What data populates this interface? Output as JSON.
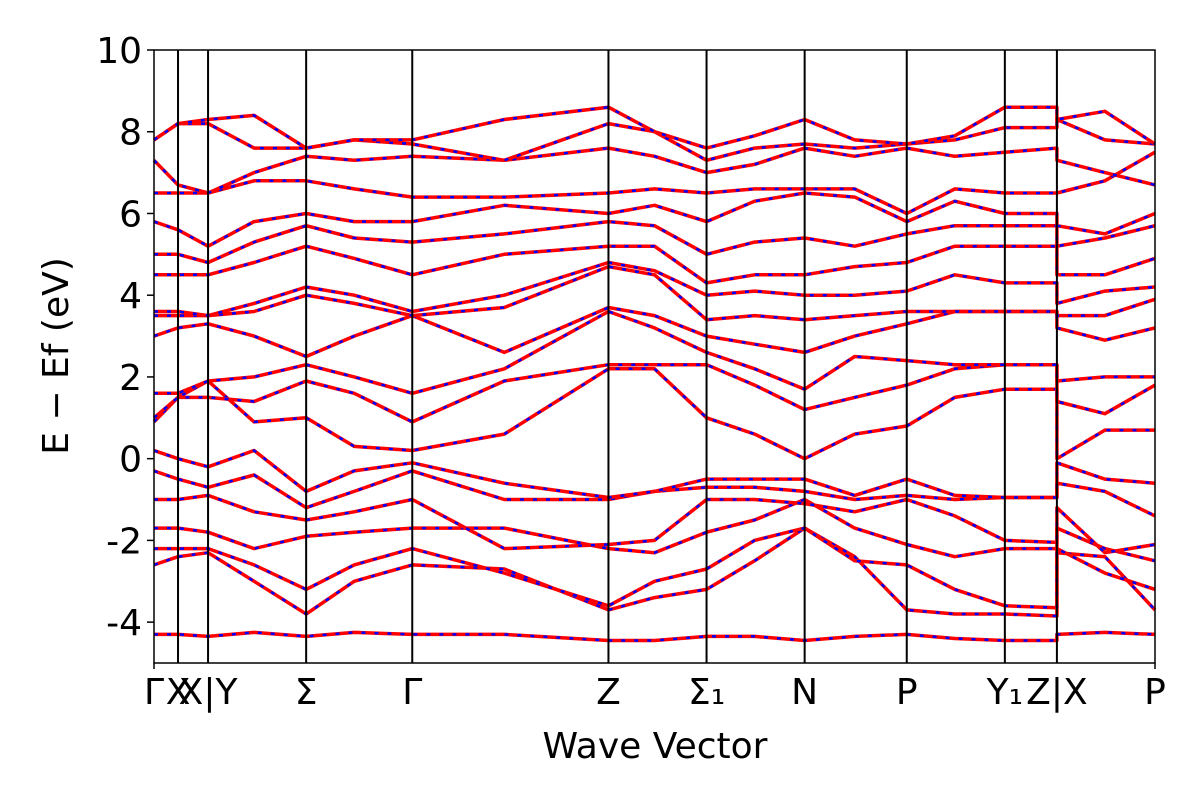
{
  "chart_data": {
    "type": "line",
    "xlabel": "Wave Vector",
    "ylabel": "E − Ef (eV)",
    "xlim": [
      0,
      1
    ],
    "ylim": [
      -5,
      10
    ],
    "yticks": [
      -4,
      -2,
      0,
      2,
      4,
      6,
      8,
      10
    ],
    "xticks": [
      {
        "value": 0,
        "label": "Γ"
      },
      {
        "value": 0.024,
        "label": "X"
      },
      {
        "value": 0.054,
        "label": "X|Y"
      },
      {
        "value": 0.152,
        "label": "Σ"
      },
      {
        "value": 0.258,
        "label": "Γ"
      },
      {
        "value": 0.454,
        "label": "Z"
      },
      {
        "value": 0.552,
        "label": "Σ₁"
      },
      {
        "value": 0.65,
        "label": "N"
      },
      {
        "value": 0.752,
        "label": "P"
      },
      {
        "value": 0.85,
        "label": "Y₁"
      },
      {
        "value": 0.902,
        "label": "Z|X"
      },
      {
        "value": 1,
        "label": "P"
      }
    ],
    "color": "#ff0000",
    "dash_color": "#0000ff",
    "x": [
      0,
      0.024,
      0.054,
      0.1,
      0.152,
      0.2,
      0.258,
      0.35,
      0.454,
      0.5,
      0.552,
      0.6,
      0.65,
      0.7,
      0.752,
      0.8,
      0.85,
      0.902,
      0.902,
      0.95,
      1
    ],
    "series": [
      {
        "values": [
          -4.3,
          -4.3,
          -4.35,
          -4.25,
          -4.35,
          -4.25,
          -4.3,
          -4.3,
          -4.45,
          -4.45,
          -4.35,
          -4.35,
          -4.45,
          -4.35,
          -4.3,
          -4.4,
          -4.45,
          -4.45,
          -4.3,
          -4.25,
          -4.3
        ]
      },
      {
        "values": [
          -2.6,
          -2.4,
          -2.3,
          -3.0,
          -3.8,
          -3.0,
          -2.6,
          -2.7,
          -3.7,
          -3.4,
          -3.2,
          -2.5,
          -1.7,
          -2.4,
          -3.7,
          -3.8,
          -3.8,
          -3.85,
          -2.3,
          -2.4,
          -3.7
        ]
      },
      {
        "values": [
          -2.2,
          -2.2,
          -2.2,
          -2.6,
          -3.2,
          -2.6,
          -2.2,
          -2.8,
          -3.6,
          -3.0,
          -2.7,
          -2.0,
          -1.7,
          -2.5,
          -2.6,
          -3.2,
          -3.6,
          -3.65,
          -2.2,
          -2.8,
          -3.2
        ]
      },
      {
        "values": [
          -1.7,
          -1.7,
          -1.8,
          -2.2,
          -1.9,
          -1.8,
          -1.7,
          -1.7,
          -2.2,
          -2.3,
          -1.8,
          -1.5,
          -1.0,
          -1.7,
          -2.1,
          -2.4,
          -2.2,
          -2.2,
          -1.7,
          -2.2,
          -2.5
        ]
      },
      {
        "values": [
          -1.0,
          -1.0,
          -0.9,
          -1.3,
          -1.5,
          -1.3,
          -1.0,
          -2.2,
          -2.1,
          -2.0,
          -1.0,
          -1.0,
          -1.1,
          -1.3,
          -1.0,
          -1.4,
          -2.0,
          -2.05,
          -1.2,
          -2.3,
          -2.1
        ]
      },
      {
        "values": [
          -0.3,
          -0.5,
          -0.7,
          -0.4,
          -1.2,
          -0.8,
          -0.3,
          -1.0,
          -1.0,
          -0.8,
          -0.7,
          -0.7,
          -0.8,
          -1.0,
          -0.9,
          -1.0,
          -0.95,
          -0.95,
          -0.6,
          -0.8,
          -1.4
        ]
      },
      {
        "values": [
          0.2,
          0.0,
          -0.2,
          0.2,
          -0.8,
          -0.3,
          -0.1,
          -0.6,
          -0.95,
          -0.8,
          -0.5,
          -0.5,
          -0.5,
          -0.9,
          -0.5,
          -0.9,
          -0.95,
          -0.95,
          -0.1,
          -0.5,
          -0.6
        ]
      },
      {
        "values": [
          0.9,
          1.5,
          1.9,
          0.9,
          1.0,
          0.3,
          0.2,
          0.6,
          2.2,
          2.2,
          1.0,
          0.6,
          0.0,
          0.6,
          0.8,
          1.5,
          1.7,
          1.7,
          0.0,
          0.7,
          0.7
        ]
      },
      {
        "values": [
          1.0,
          1.5,
          1.5,
          1.4,
          1.9,
          1.6,
          0.9,
          1.9,
          2.3,
          2.3,
          2.3,
          1.8,
          1.2,
          1.5,
          1.8,
          2.2,
          2.3,
          2.3,
          1.4,
          1.1,
          1.8
        ]
      },
      {
        "values": [
          1.6,
          1.6,
          1.9,
          2.0,
          2.3,
          2.0,
          1.6,
          2.2,
          3.6,
          3.2,
          2.6,
          2.2,
          1.7,
          2.5,
          2.4,
          2.3,
          2.3,
          2.3,
          1.9,
          2.0,
          2.0
        ]
      },
      {
        "values": [
          3.0,
          3.2,
          3.3,
          3.0,
          2.5,
          3.0,
          3.5,
          2.6,
          3.7,
          3.5,
          3.0,
          2.8,
          2.6,
          3.0,
          3.3,
          3.6,
          3.6,
          3.6,
          3.2,
          2.9,
          3.2
        ]
      },
      {
        "values": [
          3.5,
          3.5,
          3.5,
          3.6,
          4.0,
          3.8,
          3.5,
          3.7,
          4.7,
          4.5,
          3.4,
          3.5,
          3.4,
          3.5,
          3.6,
          3.6,
          3.6,
          3.6,
          3.5,
          3.5,
          3.9
        ]
      },
      {
        "values": [
          3.6,
          3.6,
          3.5,
          3.8,
          4.2,
          4.0,
          3.6,
          4.0,
          4.8,
          4.6,
          4.0,
          4.1,
          4.0,
          4.0,
          4.1,
          4.5,
          4.3,
          4.3,
          3.8,
          4.1,
          4.2
        ]
      },
      {
        "values": [
          4.5,
          4.5,
          4.5,
          4.8,
          5.2,
          4.9,
          4.5,
          5.0,
          5.2,
          5.2,
          4.3,
          4.5,
          4.5,
          4.7,
          4.8,
          5.2,
          5.2,
          5.2,
          4.5,
          4.5,
          4.9
        ]
      },
      {
        "values": [
          5.0,
          5.0,
          4.8,
          5.3,
          5.7,
          5.4,
          5.3,
          5.5,
          5.8,
          5.7,
          5.0,
          5.3,
          5.4,
          5.2,
          5.5,
          5.7,
          5.7,
          5.7,
          5.2,
          5.4,
          5.7
        ]
      },
      {
        "values": [
          5.8,
          5.6,
          5.2,
          5.8,
          6.0,
          5.8,
          5.8,
          6.2,
          6.0,
          6.2,
          5.8,
          6.3,
          6.5,
          6.4,
          5.8,
          6.3,
          6.0,
          6.0,
          5.7,
          5.5,
          6.0
        ]
      },
      {
        "values": [
          6.5,
          6.5,
          6.5,
          6.8,
          6.8,
          6.6,
          6.4,
          6.4,
          6.5,
          6.6,
          6.5,
          6.6,
          6.6,
          6.6,
          6.0,
          6.6,
          6.5,
          6.5,
          6.5,
          6.8,
          7.5
        ]
      },
      {
        "values": [
          7.3,
          6.7,
          6.5,
          7.0,
          7.4,
          7.3,
          7.4,
          7.3,
          7.6,
          7.4,
          7.0,
          7.2,
          7.6,
          7.4,
          7.6,
          7.4,
          7.5,
          7.6,
          7.3,
          7.0,
          6.7
        ]
      },
      {
        "values": [
          7.8,
          8.2,
          8.2,
          7.6,
          7.6,
          7.8,
          7.7,
          7.3,
          8.2,
          8.0,
          7.3,
          7.6,
          7.7,
          7.6,
          7.7,
          7.8,
          8.1,
          8.1,
          8.3,
          7.8,
          7.7
        ]
      },
      {
        "values": [
          7.8,
          8.2,
          8.3,
          8.4,
          7.6,
          7.8,
          7.8,
          8.3,
          8.6,
          8.0,
          7.6,
          7.9,
          8.3,
          7.8,
          7.7,
          7.9,
          8.6,
          8.6,
          8.3,
          8.5,
          7.7
        ]
      }
    ]
  }
}
